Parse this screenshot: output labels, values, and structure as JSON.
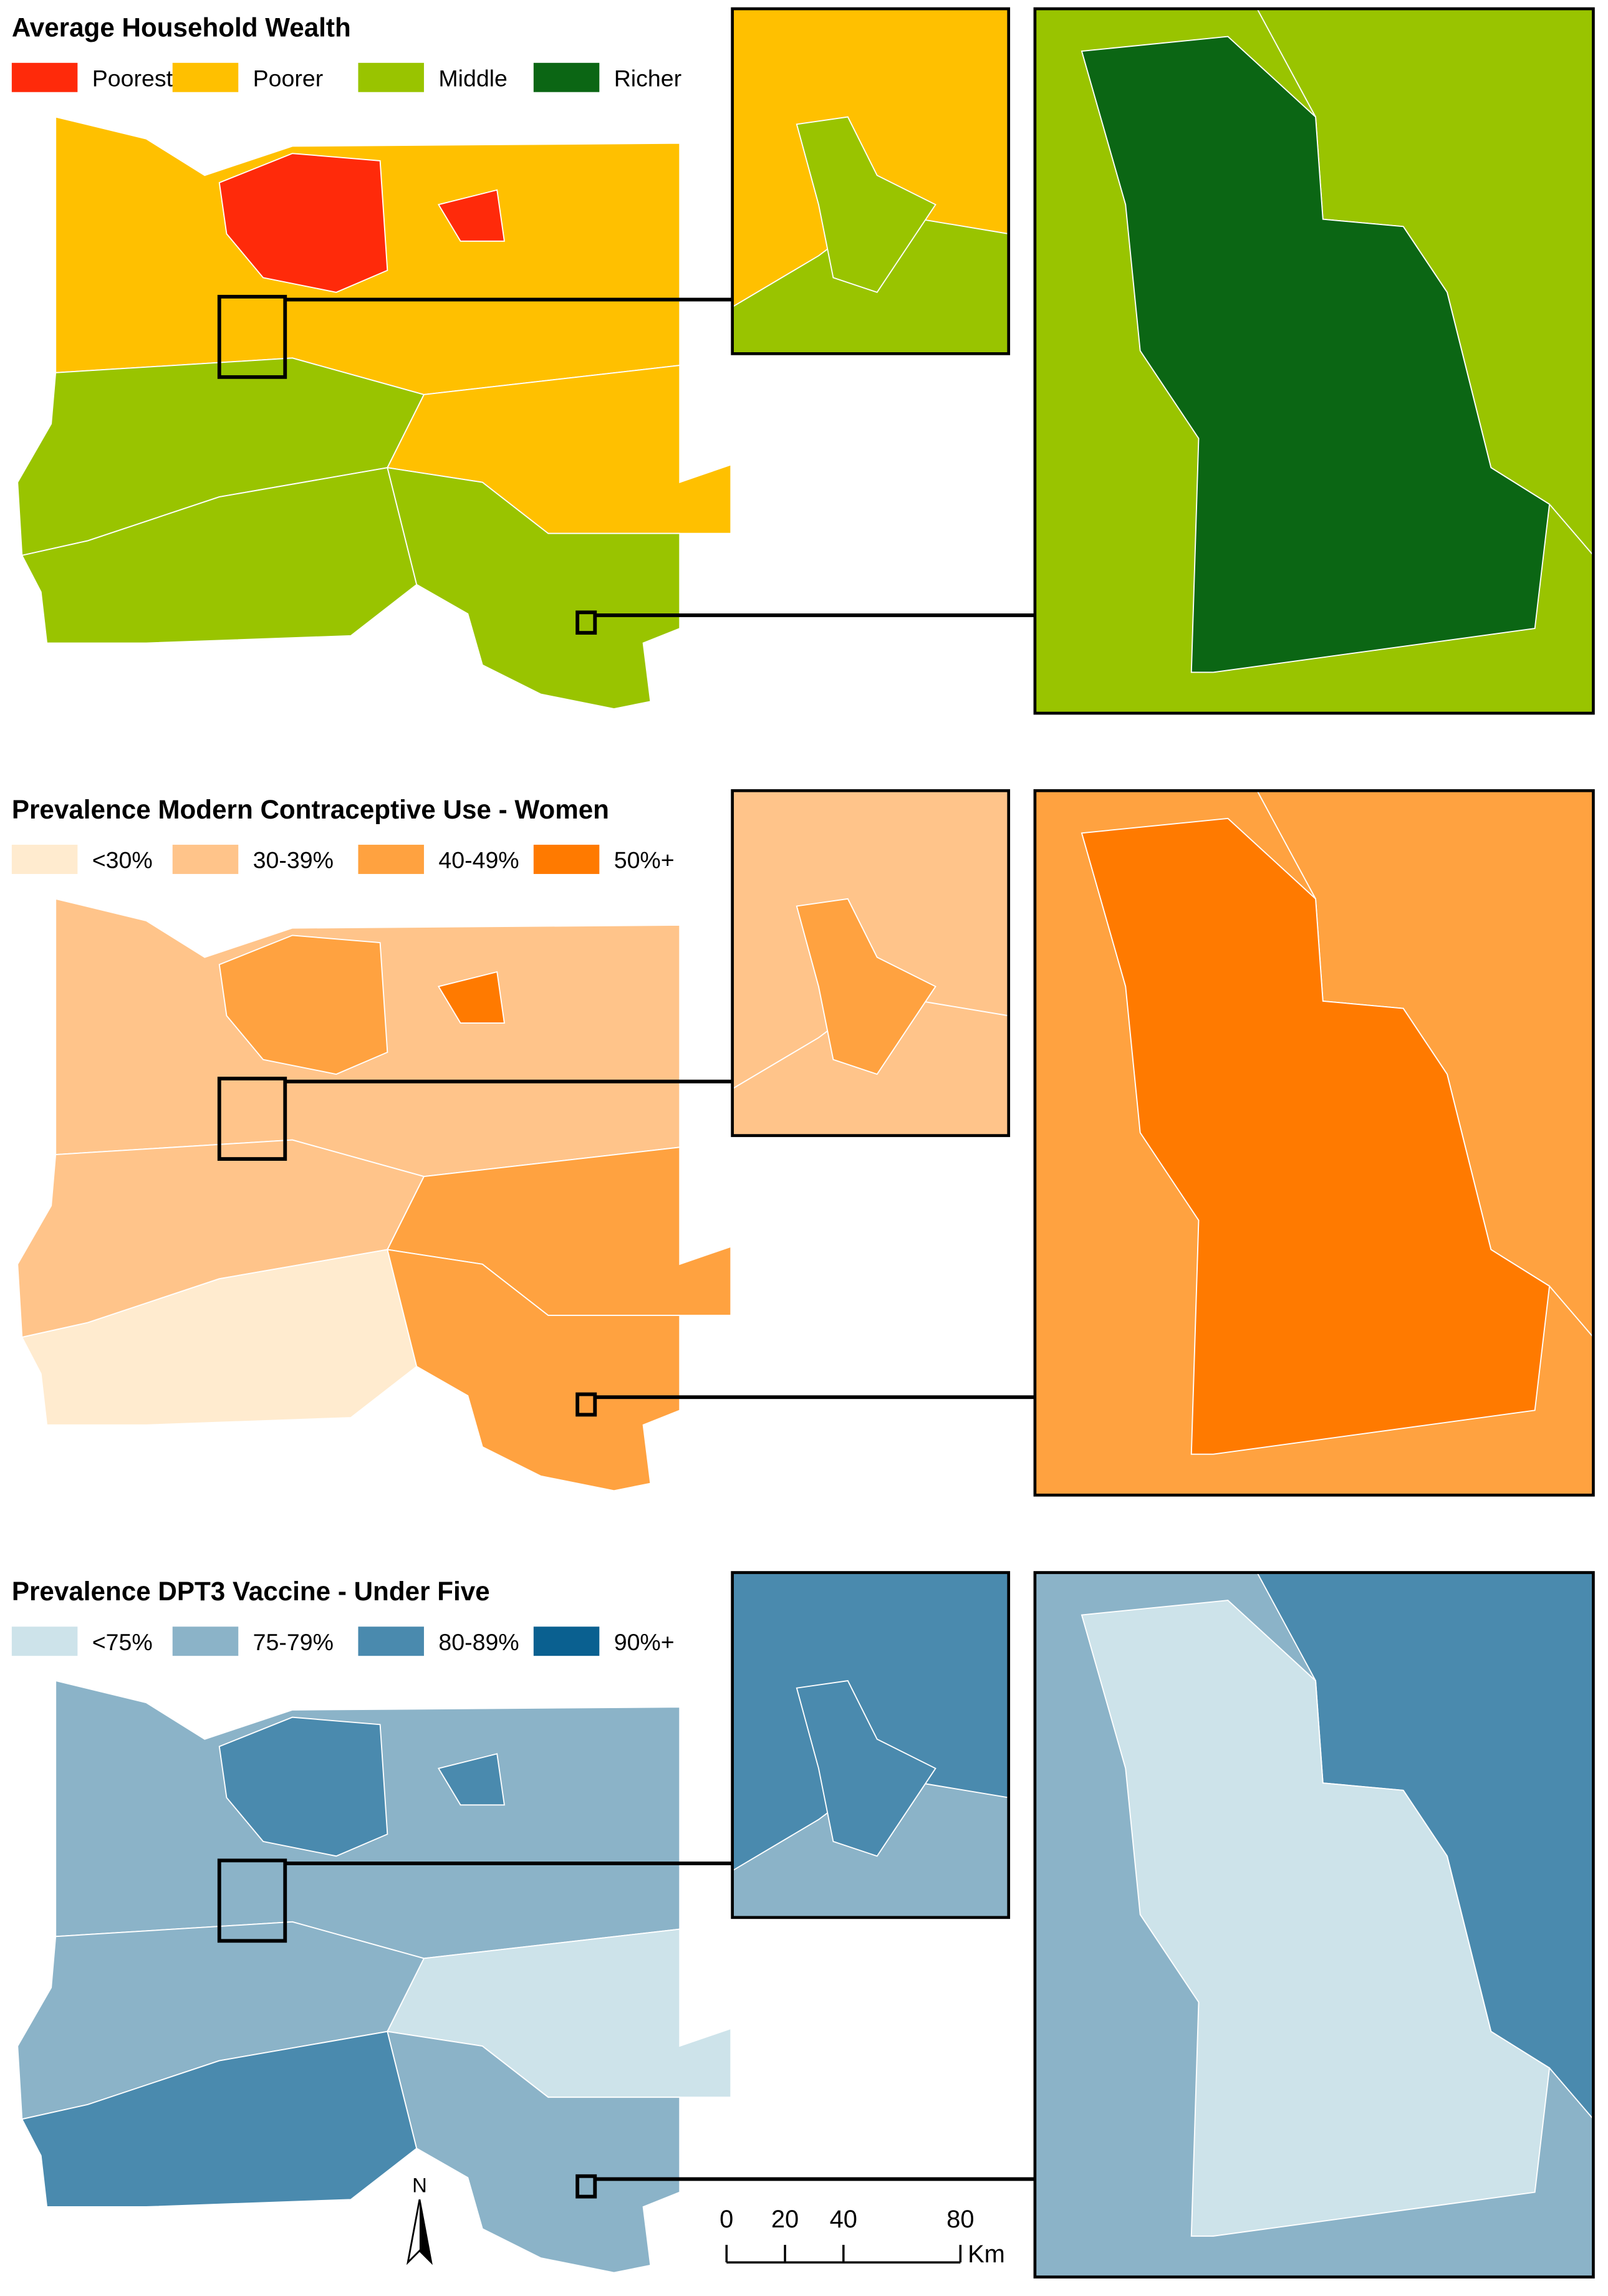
{
  "panels": [
    {
      "title": "Average Household Wealth",
      "legend": [
        {
          "label": "Poorest",
          "color": "#ff2a0a"
        },
        {
          "label": "Poorer",
          "color": "#ffc000"
        },
        {
          "label": "Middle",
          "color": "#99c400"
        },
        {
          "label": "Richer",
          "color": "#0b6614"
        }
      ]
    },
    {
      "title": "Prevalence Modern Contraceptive Use - Women",
      "legend": [
        {
          "label": "<30%",
          "color": "#ffebcf"
        },
        {
          "label": "30-39%",
          "color": "#ffc48a"
        },
        {
          "label": "40-49%",
          "color": "#ffa240"
        },
        {
          "label": "50%+",
          "color": "#ff7a00"
        }
      ]
    },
    {
      "title": "Prevalence DPT3 Vaccine - Under Five",
      "legend": [
        {
          "label": "<75%",
          "color": "#cde3ea"
        },
        {
          "label": "75-79%",
          "color": "#8bb3c8"
        },
        {
          "label": "80-89%",
          "color": "#4a8aae"
        },
        {
          "label": "90%+",
          "color": "#0a6090"
        }
      ]
    }
  ],
  "scale_bar": {
    "ticks": [
      0,
      20,
      40,
      80
    ],
    "unit": "Km"
  },
  "north_label": "N"
}
